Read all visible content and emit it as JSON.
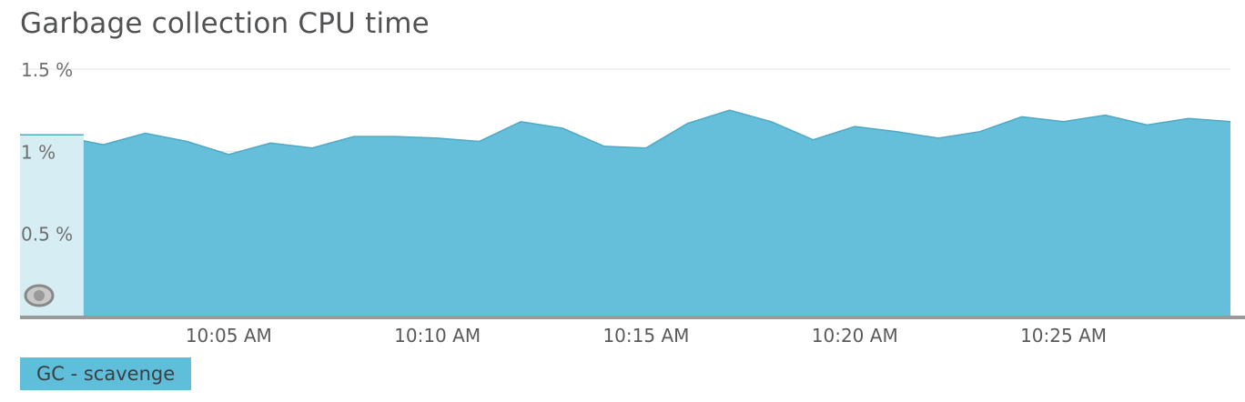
{
  "chart_title": "Garbage collection CPU time",
  "legend": {
    "label": "GC - scavenge"
  },
  "colors": {
    "fill": "#65bfdb",
    "line": "#4fa9c4",
    "selection": "#d6edf4",
    "axis": "#9a9a9a",
    "grid": "#e6e6e6"
  },
  "icons": {
    "drag_handle": "eye-handle-icon"
  },
  "chart_data": {
    "type": "area",
    "title": "Garbage collection CPU time",
    "xlabel": "",
    "ylabel": "",
    "x_unit": "minutes",
    "x_range": [
      "10:01",
      "10:29"
    ],
    "ylim": [
      0,
      1.5
    ],
    "y_ticks": [
      0.5,
      1,
      1.5
    ],
    "y_tick_labels": [
      "0.5 %",
      "1 %",
      "1.5 %"
    ],
    "x_ticks": [
      "10:05",
      "10:10",
      "10:15",
      "10:20",
      "10:25"
    ],
    "x_tick_labels": [
      "10:05 AM",
      "10:10 AM",
      "10:15 AM",
      "10:20 AM",
      "10:25 AM"
    ],
    "grid": true,
    "legend_position": "bottom-left",
    "selected_range": [
      "10:00",
      "10:01"
    ],
    "series": [
      {
        "name": "GC - scavenge",
        "x": [
          "10:00",
          "10:01",
          "10:02",
          "10:03",
          "10:04",
          "10:05",
          "10:06",
          "10:07",
          "10:08",
          "10:09",
          "10:10",
          "10:11",
          "10:12",
          "10:13",
          "10:14",
          "10:15",
          "10:16",
          "10:17",
          "10:18",
          "10:19",
          "10:20",
          "10:21",
          "10:22",
          "10:23",
          "10:24",
          "10:25",
          "10:26",
          "10:27",
          "10:28",
          "10:29"
        ],
        "values": [
          1.1,
          1.09,
          1.04,
          1.11,
          1.06,
          0.98,
          1.05,
          1.02,
          1.09,
          1.09,
          1.08,
          1.06,
          1.18,
          1.14,
          1.03,
          1.02,
          1.17,
          1.25,
          1.18,
          1.07,
          1.15,
          1.12,
          1.08,
          1.12,
          1.21,
          1.18,
          1.22,
          1.16,
          1.2,
          1.18
        ]
      }
    ]
  }
}
